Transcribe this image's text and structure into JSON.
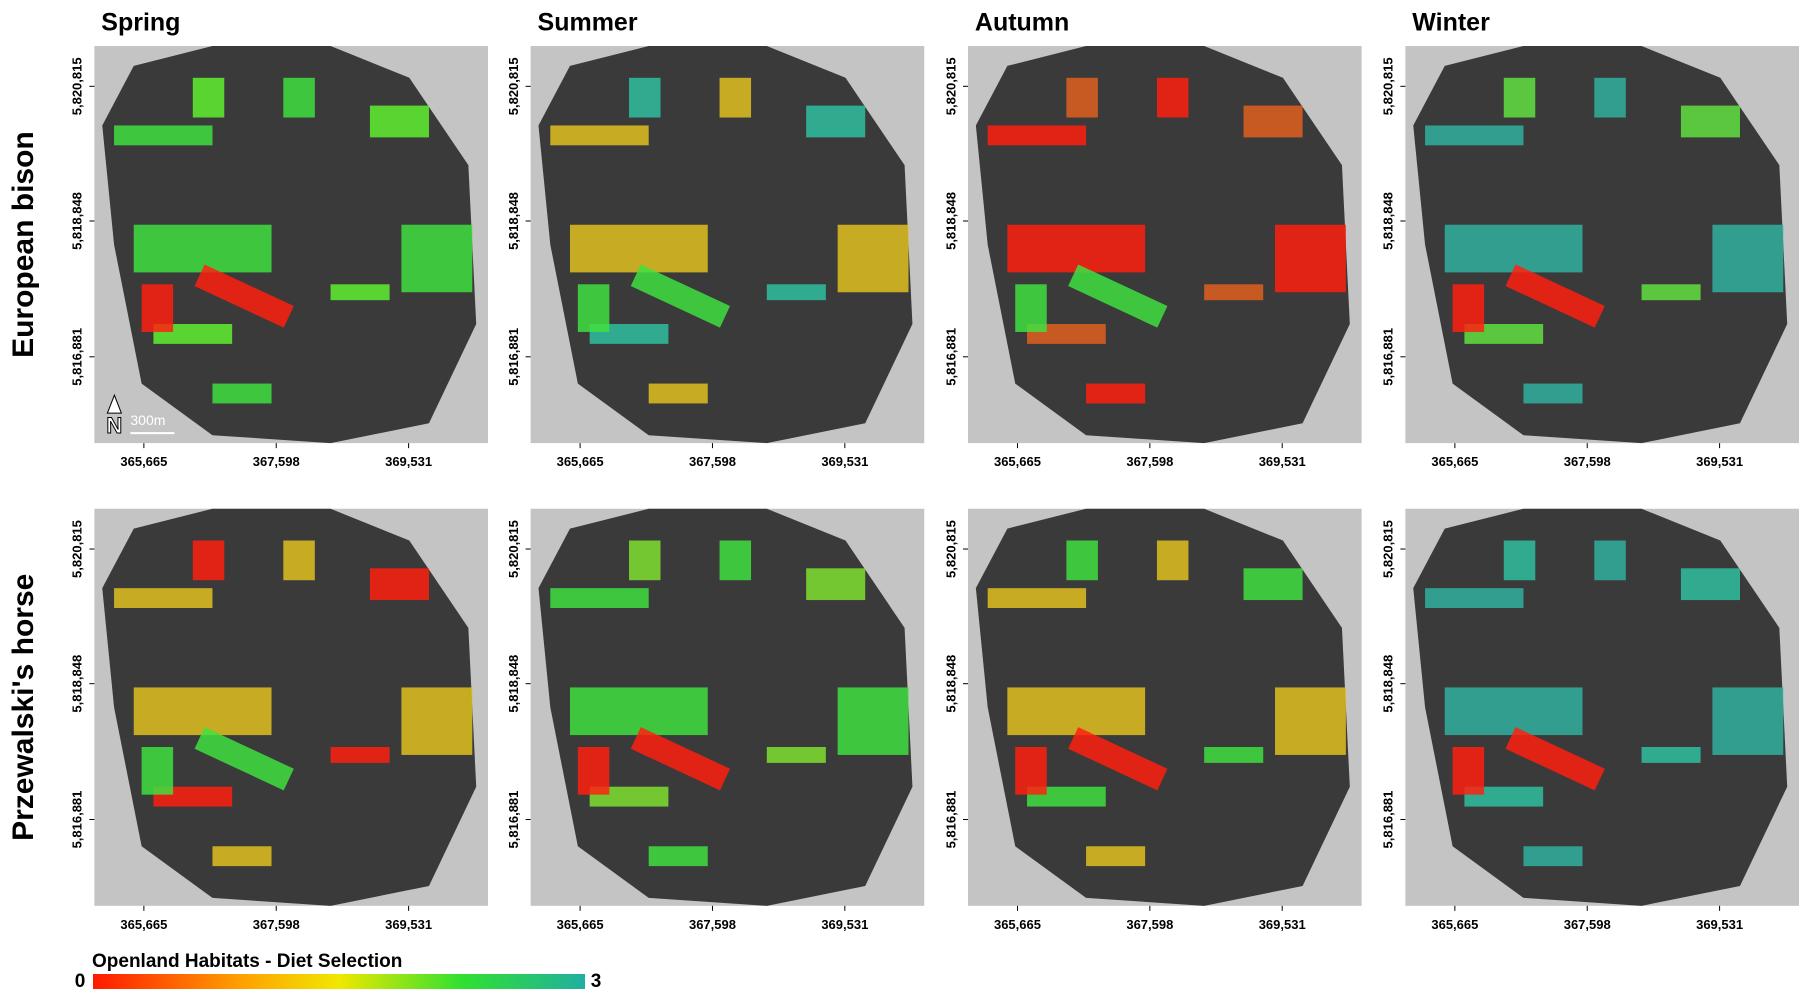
{
  "columns": [
    "Spring",
    "Summer",
    "Autumn",
    "Winter"
  ],
  "rows": [
    "European bison",
    "Przewalski's horse"
  ],
  "axes": {
    "xticks": [
      "365,665",
      "367,598",
      "369,531"
    ],
    "yticks": [
      "5,820,815",
      "5,818,848",
      "5,816,881"
    ]
  },
  "scale_bar": "300m",
  "north": "N",
  "legend": {
    "title": "Openland Habitats - Diet Selection",
    "min": 0,
    "max": 3
  }
}
